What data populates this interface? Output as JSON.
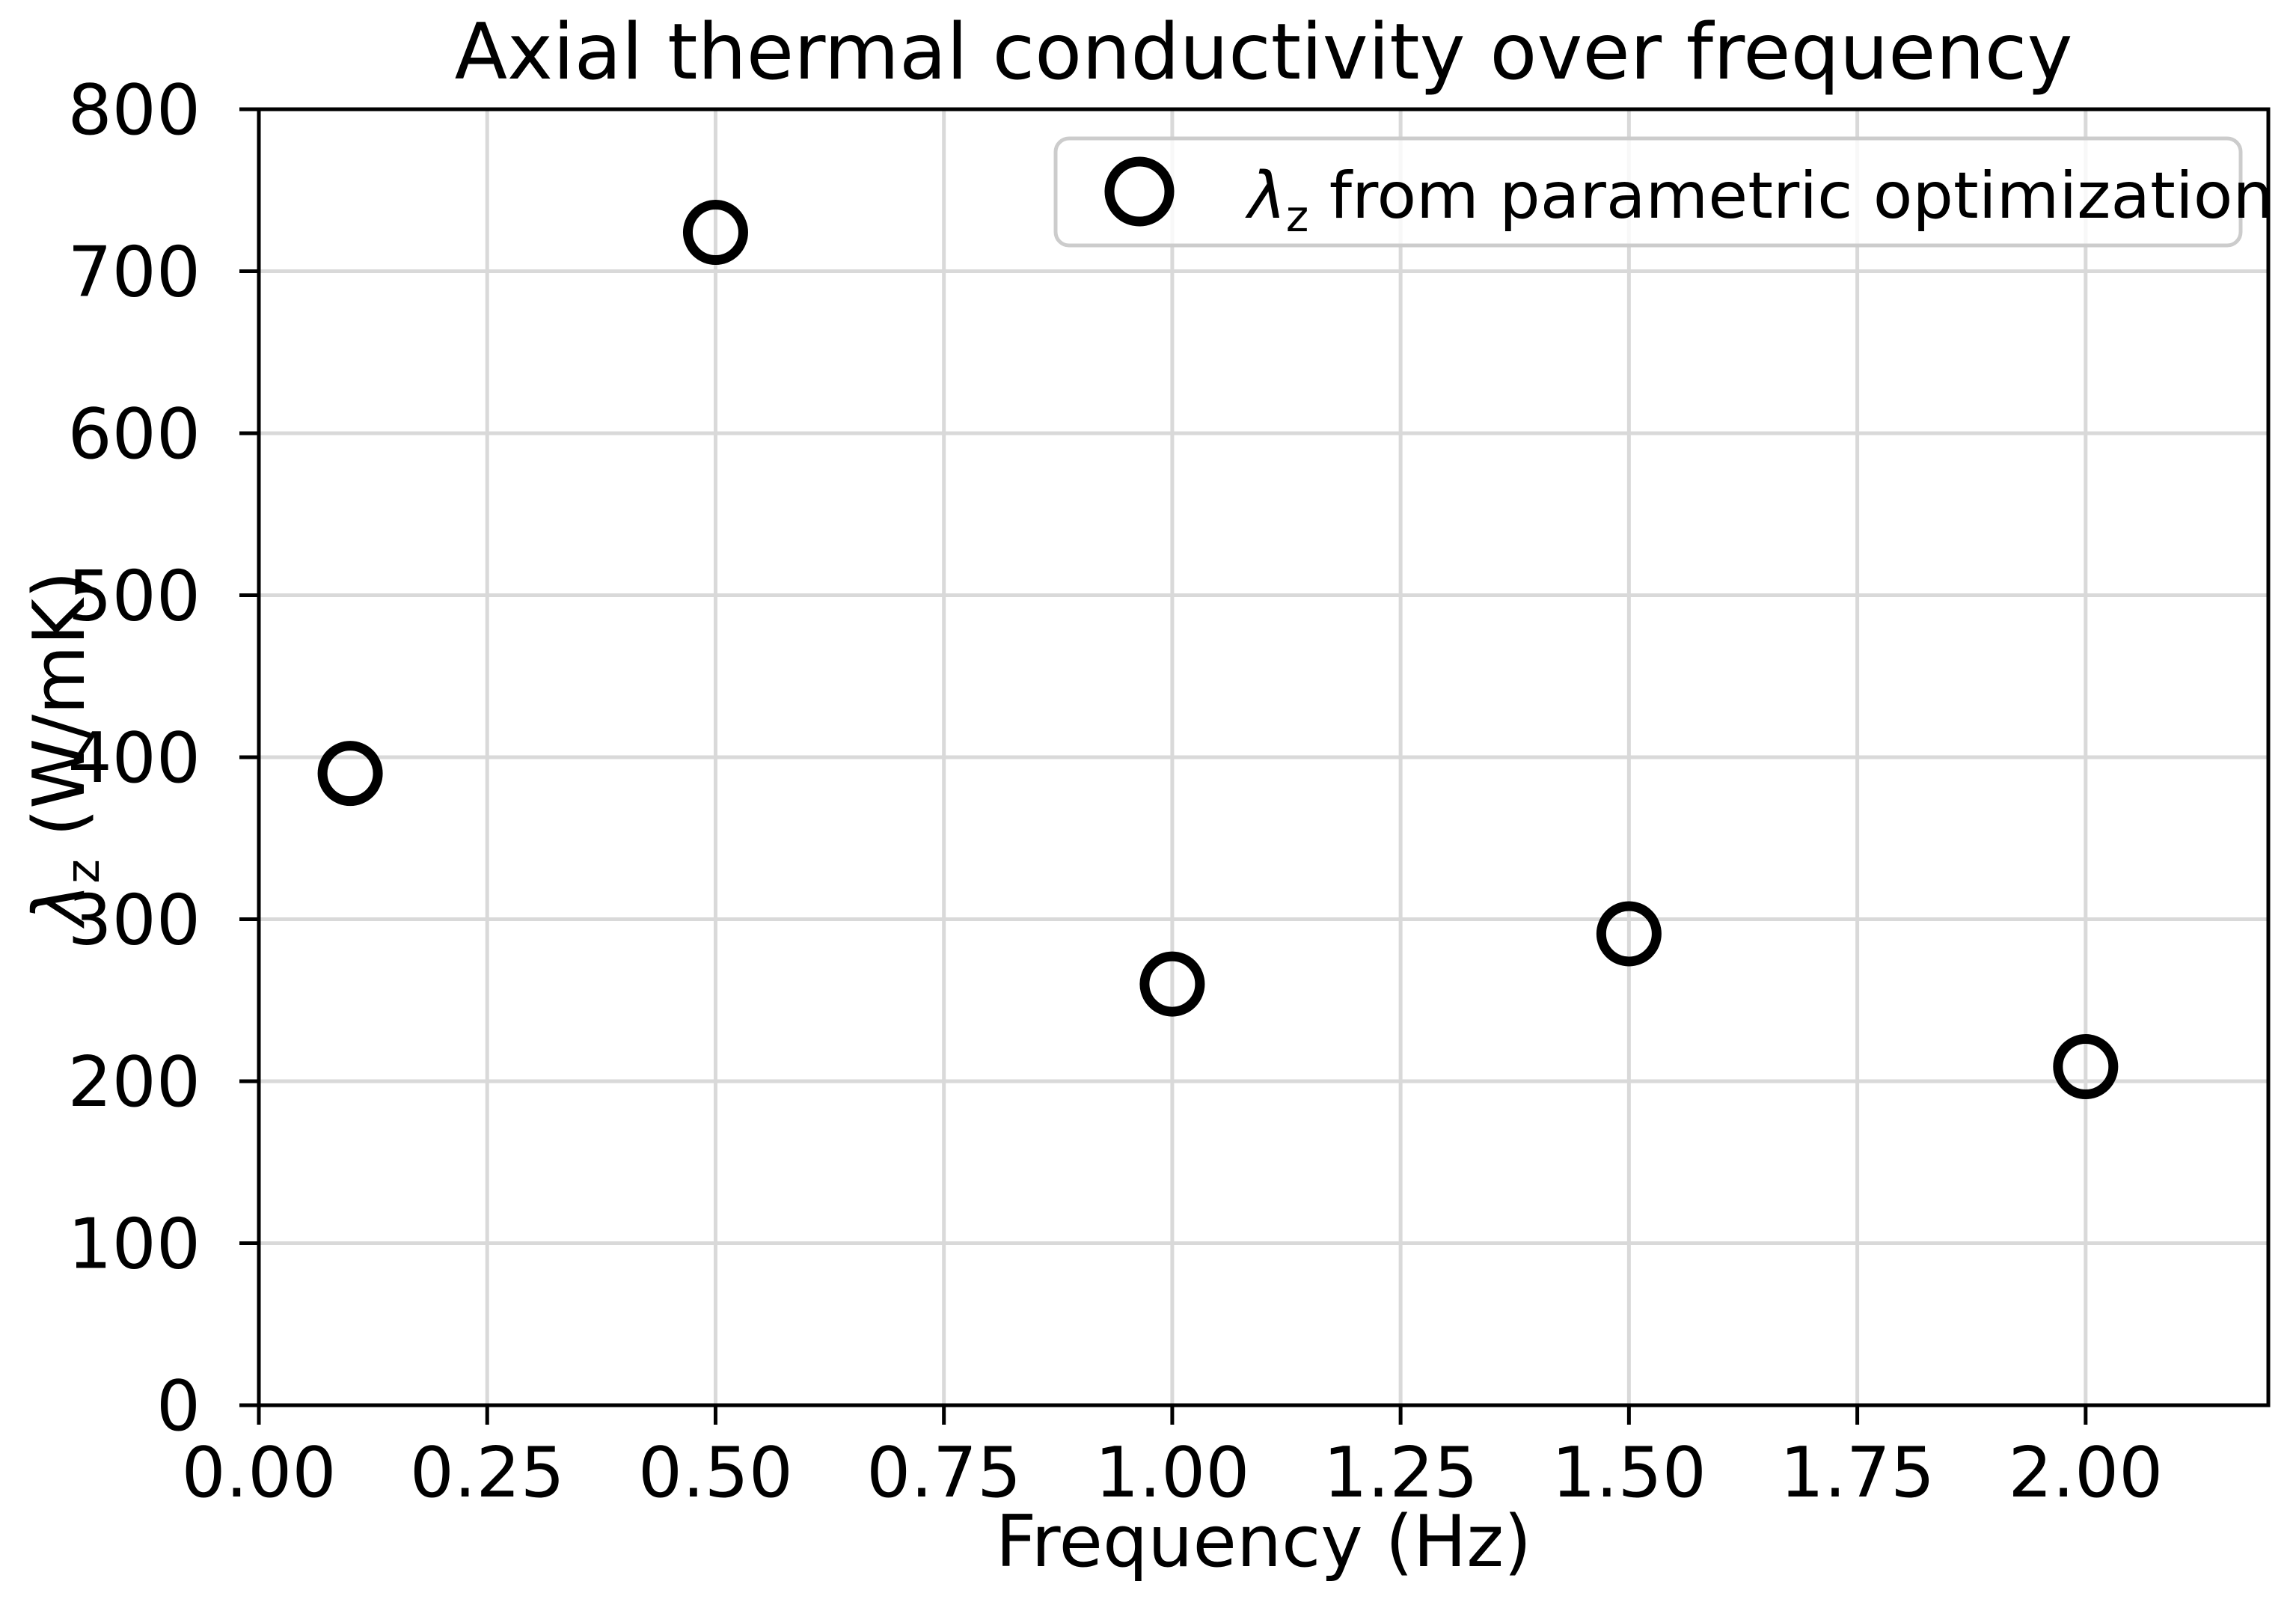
{
  "figure": {
    "title": "Axial thermal conductivity over frequency",
    "xlabel": "Frequency (Hz)",
    "ylabel_symbol": "λ",
    "ylabel_sub": "z",
    "ylabel_rest": " (W/mK)",
    "background_color": "#ffffff"
  },
  "legend": {
    "symbol": "λ",
    "sub": "z",
    "rest": " from parametric optimization",
    "marker": "open-circle-icon",
    "position": "upper right",
    "border_color": "#cccccc",
    "fill_opacity": 0.8
  },
  "style": {
    "grid_color": "#d9d9d9",
    "axis_color": "#000000",
    "marker_color": "#000000",
    "marker_fill": "none"
  },
  "chart_data": {
    "type": "scatter",
    "title": "Axial thermal conductivity over frequency",
    "xlabel": "Frequency (Hz)",
    "ylabel": "λ_z (W/mK)",
    "grid": true,
    "legend_position": "upper right",
    "xlim": [
      0,
      2.2
    ],
    "ylim": [
      0,
      800
    ],
    "xticks": [
      "0.00",
      "0.25",
      "0.50",
      "0.75",
      "1.00",
      "1.25",
      "1.50",
      "1.75",
      "2.00"
    ],
    "yticks": [
      "0",
      "100",
      "200",
      "300",
      "400",
      "500",
      "600",
      "700",
      "800"
    ],
    "series": [
      {
        "name": "λ_z from parametric optimization",
        "marker": "open-circle",
        "x": [
          0.1,
          0.5,
          1.0,
          1.5,
          2.0
        ],
        "y": [
          390,
          724,
          260,
          291,
          209
        ]
      }
    ]
  }
}
